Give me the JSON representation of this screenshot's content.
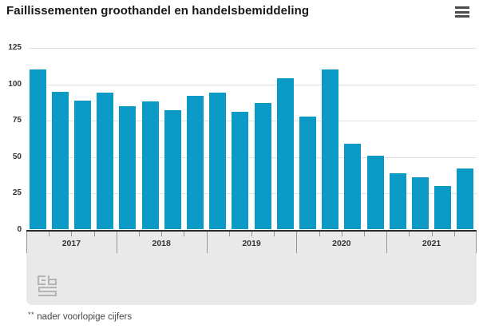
{
  "header": {
    "title": "Faillissementen groothandel en handelsbemiddeling"
  },
  "chart_data": {
    "type": "bar",
    "title": "Faillissementen groothandel en handelsbemiddeling",
    "categories": [
      "2017",
      "2018",
      "2019",
      "2020",
      "2021"
    ],
    "bars_per_category": 4,
    "values": [
      110,
      95,
      89,
      94,
      85,
      88,
      82,
      92,
      94,
      81,
      87,
      104,
      78,
      110,
      59,
      51,
      39,
      36,
      30,
      42
    ],
    "ylim": [
      0,
      125
    ],
    "yticks": [
      0,
      25,
      50,
      75,
      100,
      125
    ],
    "xlabel": "",
    "ylabel": "",
    "bar_color": "#0a9ac5",
    "grid": true,
    "legend": false
  },
  "footnote": {
    "marker": "**",
    "text": "nader voorlopige cijfers"
  },
  "icons": {
    "menu": "hamburger-icon",
    "logo": "cbs-logo"
  }
}
